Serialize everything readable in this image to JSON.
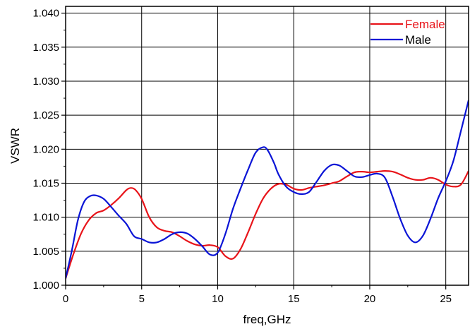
{
  "chart_data": {
    "type": "line",
    "xlabel": "freq,GHz",
    "ylabel": "VSWR",
    "xlim": [
      0,
      26.5
    ],
    "ylim": [
      1.0,
      1.041
    ],
    "x_ticks": [
      0,
      5,
      10,
      15,
      20,
      25
    ],
    "x_tick_labels": [
      "0",
      "5",
      "10",
      "15",
      "20",
      "25"
    ],
    "y_ticks": [
      1.0,
      1.005,
      1.01,
      1.015,
      1.02,
      1.025,
      1.03,
      1.035,
      1.04
    ],
    "y_tick_labels": [
      "1.000",
      "1.005",
      "1.010",
      "1.015",
      "1.020",
      "1.025",
      "1.030",
      "1.035",
      "1.040"
    ],
    "grid": true,
    "legend_position": "top-right",
    "series": [
      {
        "name": "Female",
        "color": "#e8141a",
        "x": [
          0,
          0.5,
          1,
          1.5,
          2,
          2.5,
          3,
          3.5,
          4,
          4.3,
          4.6,
          5,
          5.5,
          6,
          6.5,
          7,
          7.5,
          8,
          8.5,
          9,
          9.5,
          10,
          10.5,
          11,
          11.5,
          12,
          12.5,
          13,
          13.5,
          14,
          14.5,
          15,
          15.5,
          16,
          16.5,
          17,
          17.5,
          18,
          18.5,
          19,
          19.5,
          20,
          20.5,
          21,
          21.5,
          22,
          22.5,
          23,
          23.5,
          24,
          24.5,
          25,
          25.5,
          26,
          26.5
        ],
        "values": [
          1.001,
          1.0045,
          1.0075,
          1.0095,
          1.0106,
          1.011,
          1.0118,
          1.0128,
          1.014,
          1.0143,
          1.014,
          1.0127,
          1.01,
          1.0085,
          1.008,
          1.0078,
          1.0072,
          1.0065,
          1.006,
          1.0058,
          1.0059,
          1.0056,
          1.0043,
          1.0039,
          1.0053,
          1.0078,
          1.0105,
          1.0128,
          1.0142,
          1.0149,
          1.0148,
          1.0142,
          1.014,
          1.0143,
          1.0145,
          1.0147,
          1.015,
          1.0153,
          1.016,
          1.0166,
          1.0167,
          1.0166,
          1.0167,
          1.0168,
          1.0167,
          1.0163,
          1.0158,
          1.0155,
          1.0155,
          1.0158,
          1.0155,
          1.0148,
          1.0145,
          1.0148,
          1.0168
        ]
      },
      {
        "name": "Male",
        "color": "#0a14d6",
        "x": [
          0,
          0.4,
          0.8,
          1.2,
          1.6,
          2,
          2.5,
          3,
          3.5,
          4,
          4.5,
          5,
          5.5,
          6,
          6.5,
          7,
          7.5,
          8,
          8.5,
          9,
          9.5,
          10,
          10.5,
          11,
          11.5,
          12,
          12.5,
          13,
          13.3,
          13.7,
          14,
          14.5,
          15,
          15.5,
          16,
          16.5,
          17,
          17.5,
          18,
          18.5,
          19,
          19.5,
          20,
          20.5,
          21,
          21.5,
          22,
          22.5,
          23,
          23.5,
          24,
          24.5,
          25,
          25.5,
          26,
          26.5
        ],
        "values": [
          1.001,
          1.005,
          1.0095,
          1.0122,
          1.0131,
          1.0132,
          1.0127,
          1.0115,
          1.0102,
          1.009,
          1.0072,
          1.0068,
          1.0063,
          1.0063,
          1.0068,
          1.0075,
          1.0078,
          1.0076,
          1.0068,
          1.0057,
          1.0045,
          1.0048,
          1.0075,
          1.0112,
          1.0142,
          1.017,
          1.0195,
          1.0203,
          1.0198,
          1.018,
          1.0163,
          1.0145,
          1.0137,
          1.0134,
          1.0137,
          1.0152,
          1.0168,
          1.0177,
          1.0176,
          1.0168,
          1.016,
          1.0159,
          1.0162,
          1.0164,
          1.0158,
          1.013,
          1.0098,
          1.0073,
          1.0063,
          1.0073,
          1.0098,
          1.0128,
          1.0153,
          1.0183,
          1.0227,
          1.0272
        ]
      }
    ]
  }
}
